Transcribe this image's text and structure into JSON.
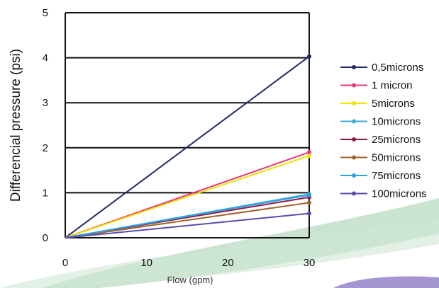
{
  "chart_data": {
    "type": "line",
    "title": "",
    "xlabel": "Flow (gpm)",
    "ylabel": "Differencial pressure (psi)",
    "xlim": [
      0,
      30
    ],
    "ylim": [
      0,
      5
    ],
    "xticks": [
      "0",
      "10",
      "20",
      "30"
    ],
    "yticks": [
      "0",
      "1",
      "2",
      "3",
      "4",
      "5"
    ],
    "grid": "horizontal",
    "legend_position": "right",
    "x": [
      0,
      30
    ],
    "series": [
      {
        "name": "0,5microns",
        "color": "#1f2a6b",
        "values": [
          0,
          4.03
        ]
      },
      {
        "name": "1 micron",
        "color": "#e8357f",
        "values": [
          0,
          1.9
        ]
      },
      {
        "name": "5microns",
        "color": "#f2e300",
        "values": [
          0,
          1.82
        ]
      },
      {
        "name": "10microns",
        "color": "#3aa8d8",
        "values": [
          0,
          0.97
        ]
      },
      {
        "name": "25microns",
        "color": "#8b1a4a",
        "values": [
          0,
          0.9
        ]
      },
      {
        "name": "50microns",
        "color": "#a0642a",
        "values": [
          0,
          0.78
        ]
      },
      {
        "name": "75microns",
        "color": "#29a3e0",
        "values": [
          0,
          0.95
        ]
      },
      {
        "name": "100microns",
        "color": "#5a4bb0",
        "values": [
          0,
          0.54
        ]
      }
    ]
  }
}
